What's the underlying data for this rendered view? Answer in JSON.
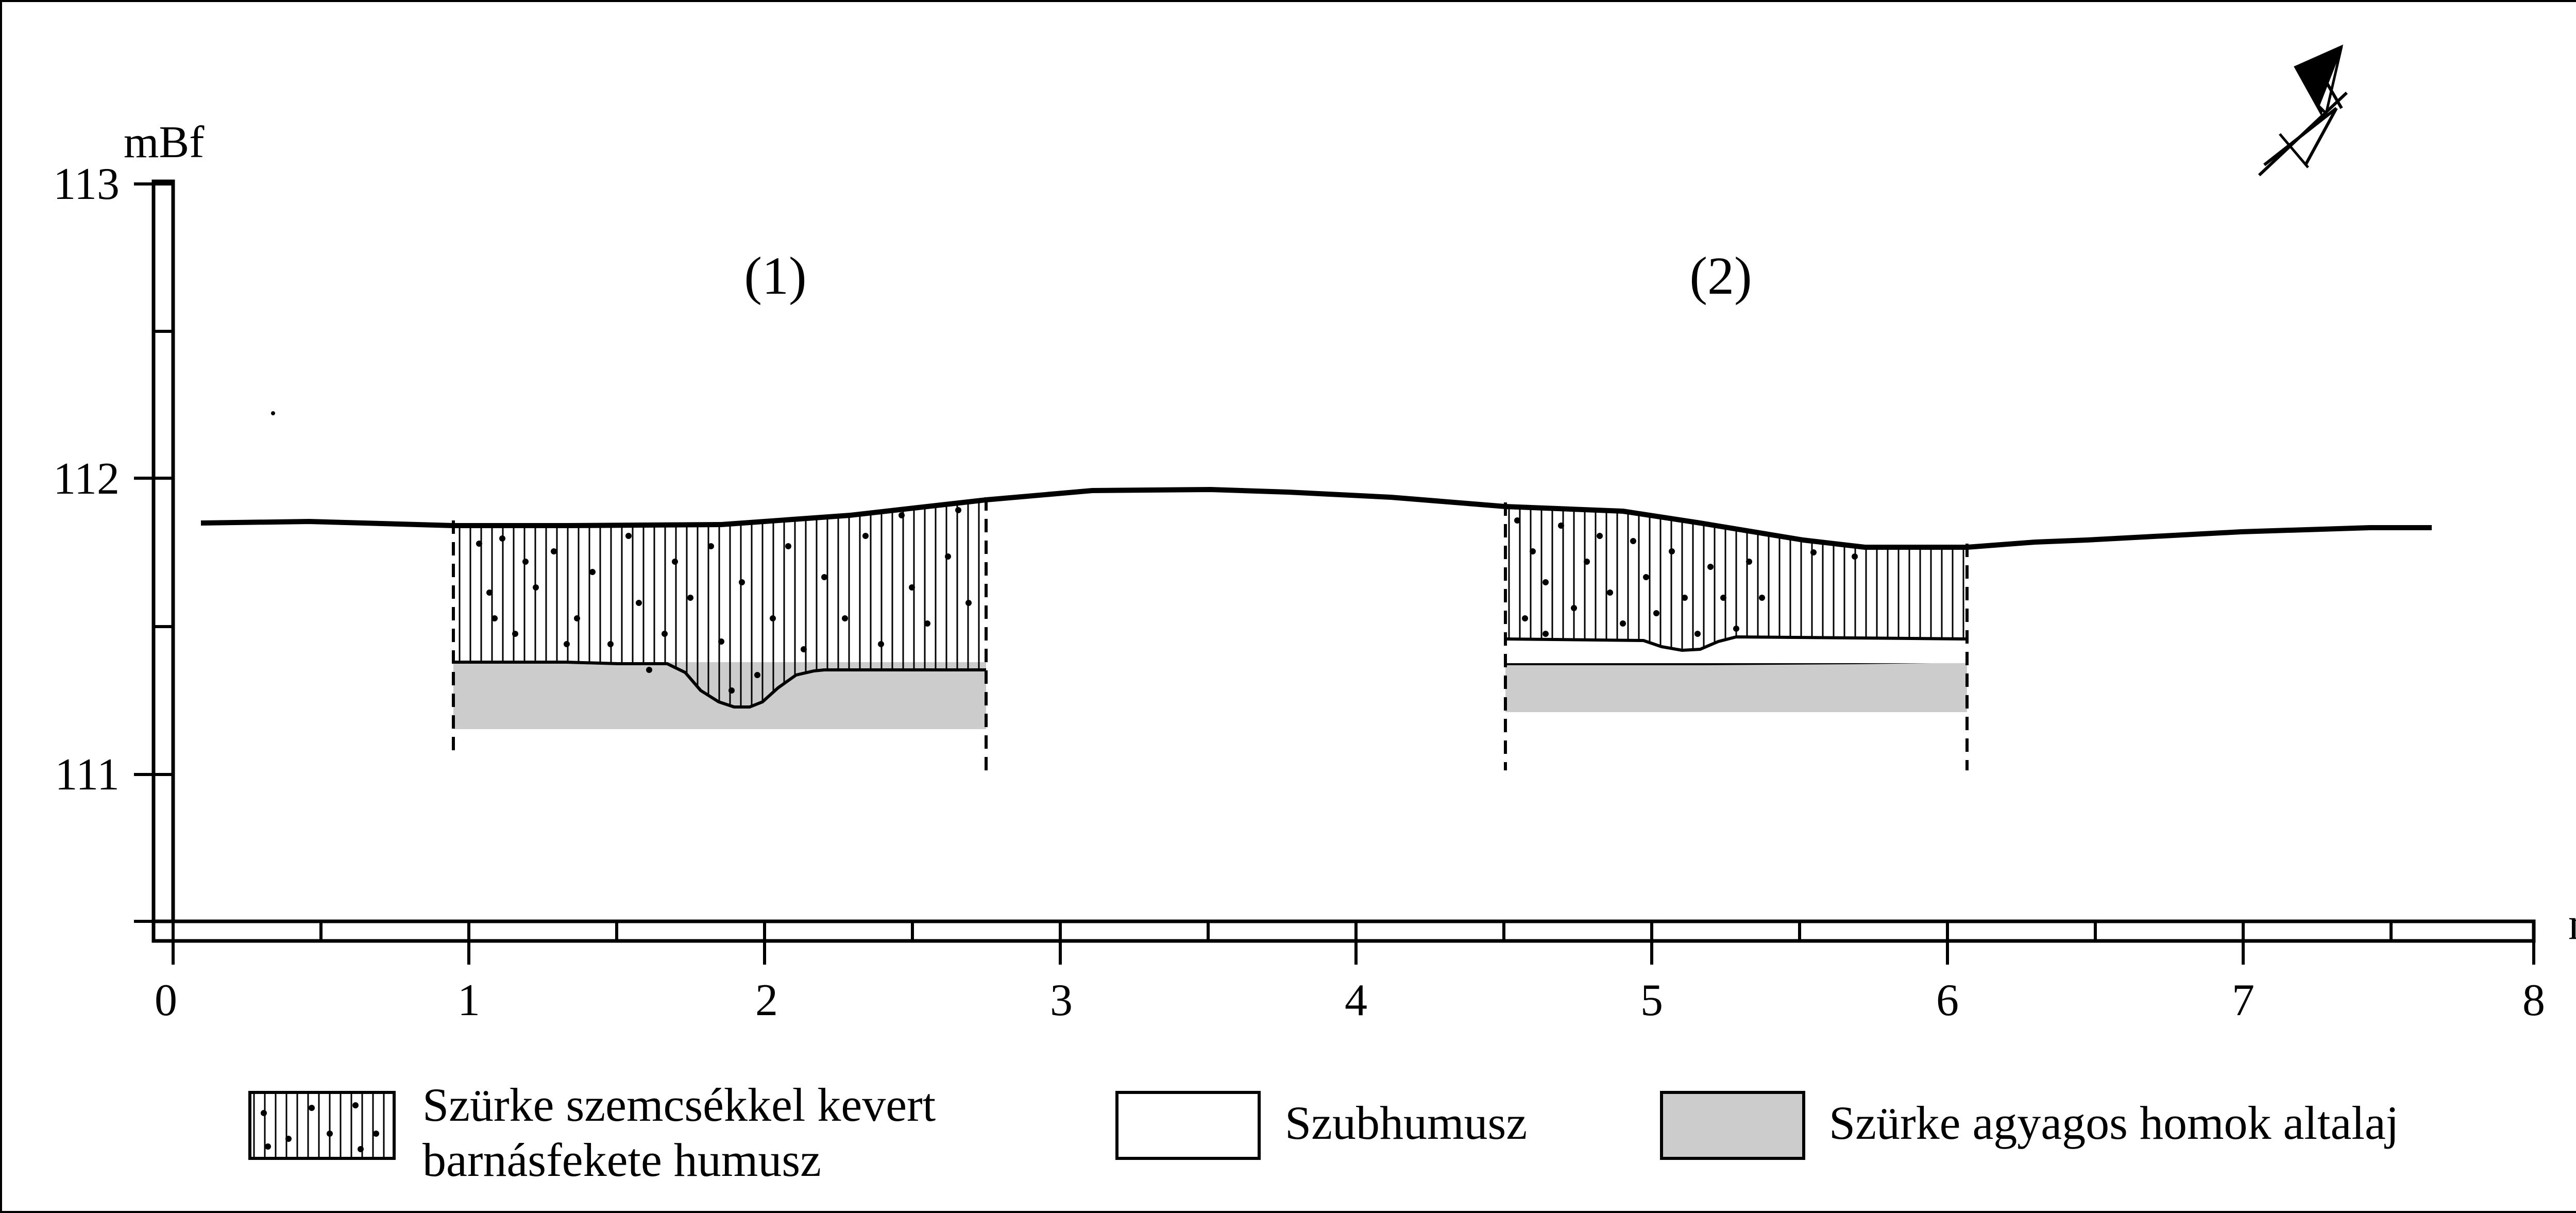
{
  "axes": {
    "y_unit": "mBf",
    "x_unit": "m",
    "y_ticks": [
      "113",
      "112",
      "111"
    ],
    "x_ticks": [
      "0",
      "1",
      "2",
      "3",
      "4",
      "5",
      "6",
      "7",
      "8"
    ]
  },
  "sections": [
    {
      "label": "(1)"
    },
    {
      "label": "(2)"
    }
  ],
  "legend": {
    "humus": {
      "line1": "Szürke szemcsékkel kevert",
      "line2": "barnásfekete humusz"
    },
    "subhumus": {
      "label": "Szubhumusz"
    },
    "subsoil": {
      "label": "Szürke agyagos homok altalaj"
    }
  },
  "colors": {
    "subsoil_fill": "#cccccc",
    "ink": "#000000",
    "background": "#ffffff"
  },
  "icons": {
    "north_arrow": "north-arrow-icon"
  }
}
